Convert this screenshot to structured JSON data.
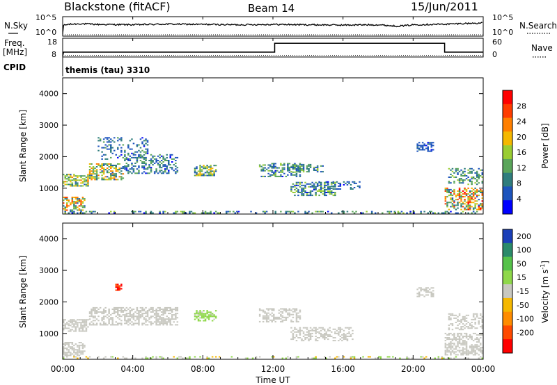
{
  "header": {
    "station": "Blackstone (fitACF)",
    "beam": "Beam 14",
    "date": "15/Jun/2011"
  },
  "noise_panel": {
    "left_label": "N.Sky",
    "right_label": "N.Search",
    "left_ticks": [
      "10^5",
      "10^0"
    ],
    "right_ticks": [
      "10^5",
      "10^0"
    ]
  },
  "freq_panel": {
    "left_label_1": "Freq.",
    "left_label_2": "[MHz]",
    "left_ticks": [
      "18",
      "8"
    ],
    "right_label": "Nave",
    "right_ticks": [
      "60",
      "0"
    ],
    "cpid_label": "CPID",
    "cpid_text": "themis (tau) 3310"
  },
  "time_axis": {
    "label": "Time UT",
    "ticks": [
      "00:00",
      "04:00",
      "08:00",
      "12:00",
      "16:00",
      "20:00",
      "00:00"
    ]
  },
  "colors": {
    "power": [
      "#0000ff",
      "#1d54bd",
      "#2f7d7d",
      "#5aa55a",
      "#9acd32",
      "#f5b800",
      "#ff7f00",
      "#ff3c00",
      "#ff0000"
    ],
    "velocity": [
      "#1b3fb8",
      "#2a8a6a",
      "#55c24a",
      "#8fd84a",
      "#c8c8c0",
      "#f5b800",
      "#ff8c00",
      "#ff4a00",
      "#ff0000"
    ]
  },
  "chart_data": [
    {
      "type": "line",
      "title": "N.Sky / N.Search",
      "xlabel": "",
      "ylabel": "N.Sky",
      "xlim": [
        0,
        24
      ],
      "ylim": [
        0,
        5
      ],
      "series": [
        {
          "name": "N.Sky",
          "x": [
            0,
            0.05,
            0.3,
            1,
            2,
            4,
            6,
            8,
            10,
            12,
            14,
            16,
            18,
            19,
            19.5,
            20,
            21,
            22,
            23,
            24
          ],
          "y": [
            0.2,
            2.8,
            3.1,
            3.3,
            3.1,
            3.0,
            3.2,
            3.1,
            3.0,
            3.1,
            3.0,
            2.9,
            3.0,
            2.6,
            2.7,
            3.0,
            3.1,
            3.2,
            3.4,
            3.5
          ]
        },
        {
          "name": "N.Search",
          "x": [
            0,
            24
          ],
          "y": [
            0,
            0
          ]
        }
      ]
    },
    {
      "type": "line",
      "title": "Freq. / Nave",
      "ylabel": "Freq. [MHz]",
      "xlim": [
        0,
        24
      ],
      "ylim": [
        8,
        18
      ],
      "series": [
        {
          "name": "Freq.",
          "x": [
            0,
            0.05,
            12.1,
            12.1,
            21.8,
            21.8,
            24
          ],
          "y": [
            8,
            10.5,
            10.5,
            15.8,
            15.8,
            10.5,
            10.5
          ]
        },
        {
          "name": "Nave",
          "x": [
            0,
            24
          ],
          "y": [
            8.6,
            8.6
          ]
        }
      ]
    },
    {
      "type": "heatmap",
      "title": "Power",
      "xlabel": "",
      "ylabel": "Slant Range [km]",
      "xlim": [
        0,
        24
      ],
      "ylim": [
        180,
        4500
      ],
      "yticks": [
        "1000",
        "2000",
        "3000",
        "4000"
      ],
      "colorbar_label": "Power [dB]",
      "colorbar_ticks": [
        "4",
        "8",
        "12",
        "16",
        "20",
        "24",
        "28"
      ],
      "colorbar_range": [
        0,
        32
      ],
      "regions": [
        {
          "t0": 0.0,
          "t1": 1.5,
          "r0": 1050,
          "r1": 1450,
          "v0": 6,
          "v1": 22,
          "d": 0.65
        },
        {
          "t0": 1.5,
          "t1": 3.5,
          "r0": 1250,
          "r1": 1750,
          "v0": 6,
          "v1": 24,
          "d": 0.6
        },
        {
          "t0": 3.5,
          "t1": 6.5,
          "r0": 1450,
          "r1": 2050,
          "v0": 3,
          "v1": 14,
          "d": 0.45
        },
        {
          "t0": 0.0,
          "t1": 1.3,
          "r0": 280,
          "r1": 700,
          "v0": 6,
          "v1": 28,
          "d": 0.6
        },
        {
          "t0": 2.0,
          "t1": 4.8,
          "r0": 1900,
          "r1": 2600,
          "v0": 3,
          "v1": 12,
          "d": 0.25
        },
        {
          "t0": 7.5,
          "t1": 8.7,
          "r0": 1380,
          "r1": 1700,
          "v0": 6,
          "v1": 20,
          "d": 0.6
        },
        {
          "t0": 11.2,
          "t1": 13.5,
          "r0": 1350,
          "r1": 1800,
          "v0": 3,
          "v1": 16,
          "d": 0.45
        },
        {
          "t0": 12.8,
          "t1": 14.8,
          "r0": 1500,
          "r1": 1750,
          "v0": 4,
          "v1": 16,
          "d": 0.4
        },
        {
          "t0": 13.0,
          "t1": 15.5,
          "r0": 750,
          "r1": 1200,
          "v0": 3,
          "v1": 18,
          "d": 0.5
        },
        {
          "t0": 14.5,
          "t1": 17.0,
          "r0": 950,
          "r1": 1200,
          "v0": 3,
          "v1": 10,
          "d": 0.3
        },
        {
          "t0": 20.2,
          "t1": 21.2,
          "r0": 2150,
          "r1": 2450,
          "v0": 3,
          "v1": 8,
          "d": 0.55
        },
        {
          "t0": 22.0,
          "t1": 24.0,
          "r0": 1100,
          "r1": 1600,
          "v0": 4,
          "v1": 16,
          "d": 0.45
        },
        {
          "t0": 21.8,
          "t1": 24.0,
          "r0": 300,
          "r1": 1000,
          "v0": 6,
          "v1": 30,
          "d": 0.55
        },
        {
          "t0": 0.0,
          "t1": 24.0,
          "r0": 190,
          "r1": 260,
          "v0": 3,
          "v1": 16,
          "d": 0.3
        }
      ]
    },
    {
      "type": "heatmap",
      "title": "Velocity",
      "xlabel": "Time UT",
      "ylabel": "Slant Range [km]",
      "xlim": [
        0,
        24
      ],
      "ylim": [
        180,
        4500
      ],
      "yticks": [
        "1000",
        "2000",
        "3000",
        "4000"
      ],
      "colorbar_label": "Velocity [m s^-1]",
      "colorbar_ticks": [
        "200",
        "100",
        "50",
        "15",
        "-15",
        "-50",
        "-100",
        "-200"
      ],
      "colorbar_range": [
        -250,
        250
      ],
      "regions": [
        {
          "t0": 0.0,
          "t1": 1.5,
          "r0": 1050,
          "r1": 1450,
          "v0": -20,
          "v1": 10,
          "d": 0.65
        },
        {
          "t0": 1.5,
          "t1": 6.5,
          "r0": 1250,
          "r1": 1800,
          "v0": -20,
          "v1": 10,
          "d": 0.55
        },
        {
          "t0": 0.0,
          "t1": 1.3,
          "r0": 280,
          "r1": 700,
          "v0": -12,
          "v1": 10,
          "d": 0.6
        },
        {
          "t0": 7.5,
          "t1": 8.7,
          "r0": 1380,
          "r1": 1700,
          "v0": 20,
          "v1": 60,
          "d": 0.6
        },
        {
          "t0": 11.2,
          "t1": 13.5,
          "r0": 1350,
          "r1": 1800,
          "v0": -10,
          "v1": 10,
          "d": 0.45
        },
        {
          "t0": 13.0,
          "t1": 16.5,
          "r0": 750,
          "r1": 1200,
          "v0": -10,
          "v1": 10,
          "d": 0.45
        },
        {
          "t0": 20.2,
          "t1": 21.2,
          "r0": 2150,
          "r1": 2450,
          "v0": -10,
          "v1": 10,
          "d": 0.5
        },
        {
          "t0": 22.0,
          "t1": 24.0,
          "r0": 1100,
          "r1": 1600,
          "v0": -10,
          "v1": 10,
          "d": 0.45
        },
        {
          "t0": 21.8,
          "t1": 24.0,
          "r0": 300,
          "r1": 1000,
          "v0": -10,
          "v1": 10,
          "d": 0.55
        },
        {
          "t0": 0.0,
          "t1": 24.0,
          "r0": 190,
          "r1": 260,
          "v0": -50,
          "v1": 60,
          "d": 0.25
        },
        {
          "t0": 3.0,
          "t1": 3.4,
          "r0": 2350,
          "r1": 2550,
          "v0": -250,
          "v1": -150,
          "d": 0.6
        }
      ]
    }
  ]
}
